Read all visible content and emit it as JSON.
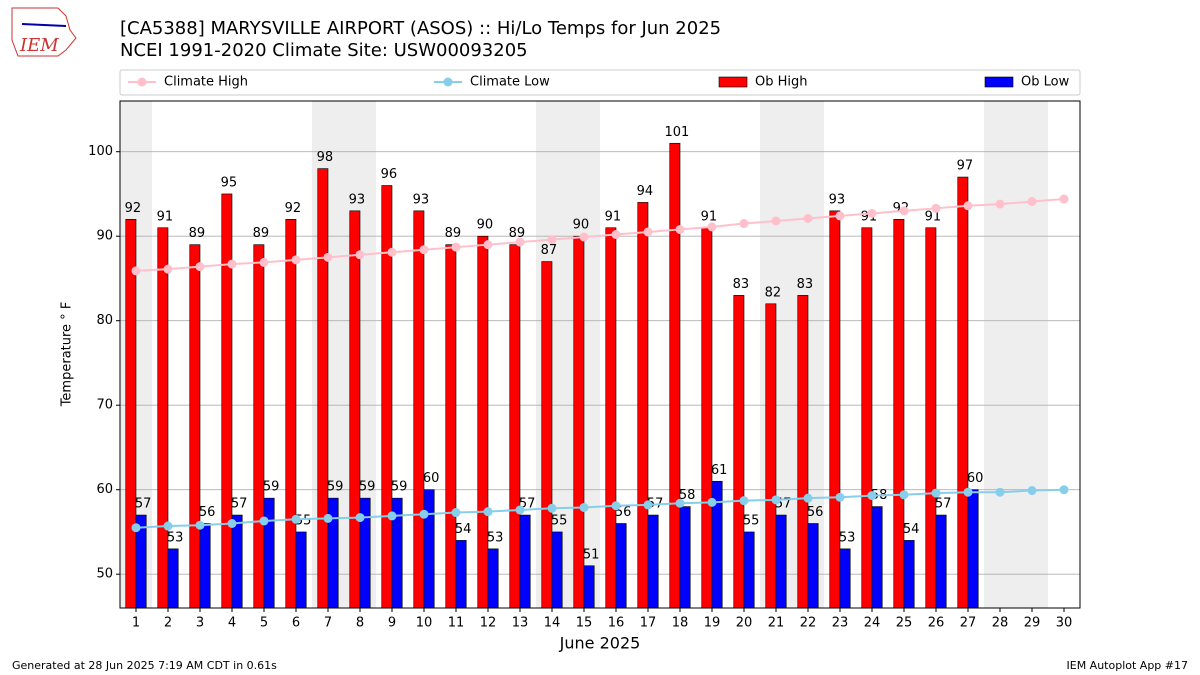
{
  "logo": "IEM",
  "footer": {
    "left": "Generated at 28 Jun 2025 7:19 AM CDT in 0.61s",
    "right": "IEM Autoplot App #17"
  },
  "chart_data": {
    "type": "bar",
    "title": "[CA5388] MARYSVILLE AIRPORT (ASOS) :: Hi/Lo Temps for Jun 2025",
    "subtitle": "NCEI 1991-2020 Climate Site: USW00093205",
    "x_label": "June 2025",
    "y_label": "Temperature ° F",
    "x": [
      1,
      2,
      3,
      4,
      5,
      6,
      7,
      8,
      9,
      10,
      11,
      12,
      13,
      14,
      15,
      16,
      17,
      18,
      19,
      20,
      21,
      22,
      23,
      24,
      25,
      26,
      27,
      28,
      29,
      30
    ],
    "xlim": [
      0.5,
      30.5
    ],
    "xticks": [
      1,
      2,
      3,
      4,
      5,
      6,
      7,
      8,
      9,
      10,
      11,
      12,
      13,
      14,
      15,
      16,
      17,
      18,
      19,
      20,
      21,
      22,
      23,
      24,
      25,
      26,
      27,
      28,
      29,
      30
    ],
    "ylim": [
      46,
      106
    ],
    "yticks": [
      50,
      60,
      70,
      80,
      90,
      100
    ],
    "grid": true,
    "shaded_days": [
      1,
      7,
      8,
      14,
      15,
      21,
      22,
      28,
      29
    ],
    "series": [
      {
        "name": "Climate High",
        "type": "line",
        "color": "#ffc0cb",
        "values": [
          85.9,
          86.1,
          86.4,
          86.7,
          86.9,
          87.2,
          87.5,
          87.8,
          88.1,
          88.4,
          88.7,
          89.0,
          89.3,
          89.6,
          89.9,
          90.2,
          90.5,
          90.8,
          91.1,
          91.5,
          91.8,
          92.1,
          92.4,
          92.7,
          93.0,
          93.3,
          93.6,
          93.8,
          94.1,
          94.4
        ]
      },
      {
        "name": "Climate Low",
        "type": "line",
        "color": "#87ceeb",
        "values": [
          55.5,
          55.7,
          55.8,
          56.0,
          56.3,
          56.5,
          56.6,
          56.7,
          56.9,
          57.1,
          57.3,
          57.4,
          57.6,
          57.8,
          57.9,
          58.1,
          58.2,
          58.4,
          58.5,
          58.7,
          58.8,
          59.0,
          59.1,
          59.3,
          59.4,
          59.6,
          59.7,
          59.7,
          59.9,
          60.0
        ]
      },
      {
        "name": "Ob High",
        "type": "bar",
        "color": "#ff0000",
        "values": [
          92,
          91,
          89,
          95,
          89,
          92,
          98,
          93,
          96,
          93,
          89,
          90,
          89,
          87,
          90,
          91,
          94,
          101,
          91,
          83,
          82,
          83,
          93,
          91,
          92,
          91,
          97,
          null,
          null,
          null
        ]
      },
      {
        "name": "Ob Low",
        "type": "bar",
        "color": "#0000ff",
        "values": [
          57,
          53,
          56,
          57,
          59,
          55,
          59,
          59,
          59,
          60,
          54,
          53,
          57,
          55,
          51,
          56,
          57,
          58,
          61,
          55,
          57,
          56,
          53,
          58,
          54,
          57,
          60,
          null,
          null,
          null
        ]
      }
    ]
  }
}
